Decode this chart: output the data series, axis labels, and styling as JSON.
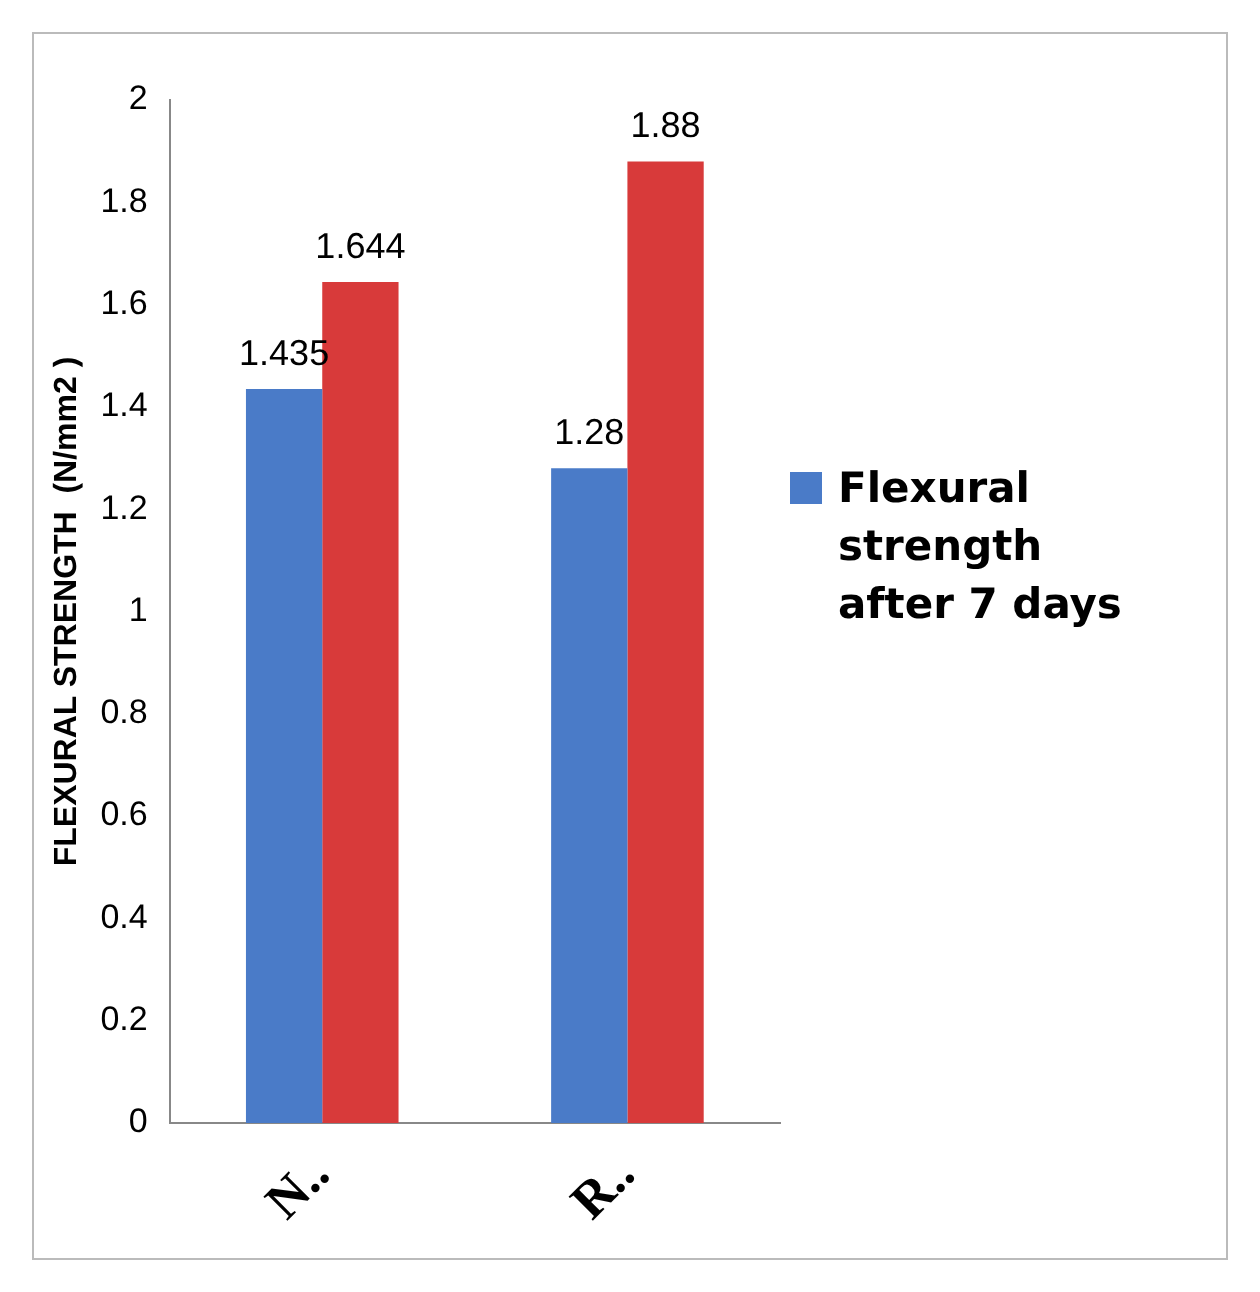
{
  "chart_data": {
    "type": "bar",
    "ylabel": "FLEXURAL STRENGTH  (N/mm2 )",
    "categories": [
      "N..",
      "R.."
    ],
    "series": [
      {
        "name": "Flexural strength after 7 days",
        "color": "#4a7bc8",
        "values": [
          1.435,
          1.28
        ]
      },
      {
        "color": "#d83a3a",
        "values": [
          1.644,
          1.88
        ]
      }
    ],
    "ylim": [
      0,
      2
    ],
    "yticks": [
      0,
      0.2,
      0.4,
      0.6,
      0.8,
      1,
      1.2,
      1.4,
      1.6,
      1.8,
      2
    ],
    "grid": false,
    "legend": "right",
    "data_labels": true
  }
}
